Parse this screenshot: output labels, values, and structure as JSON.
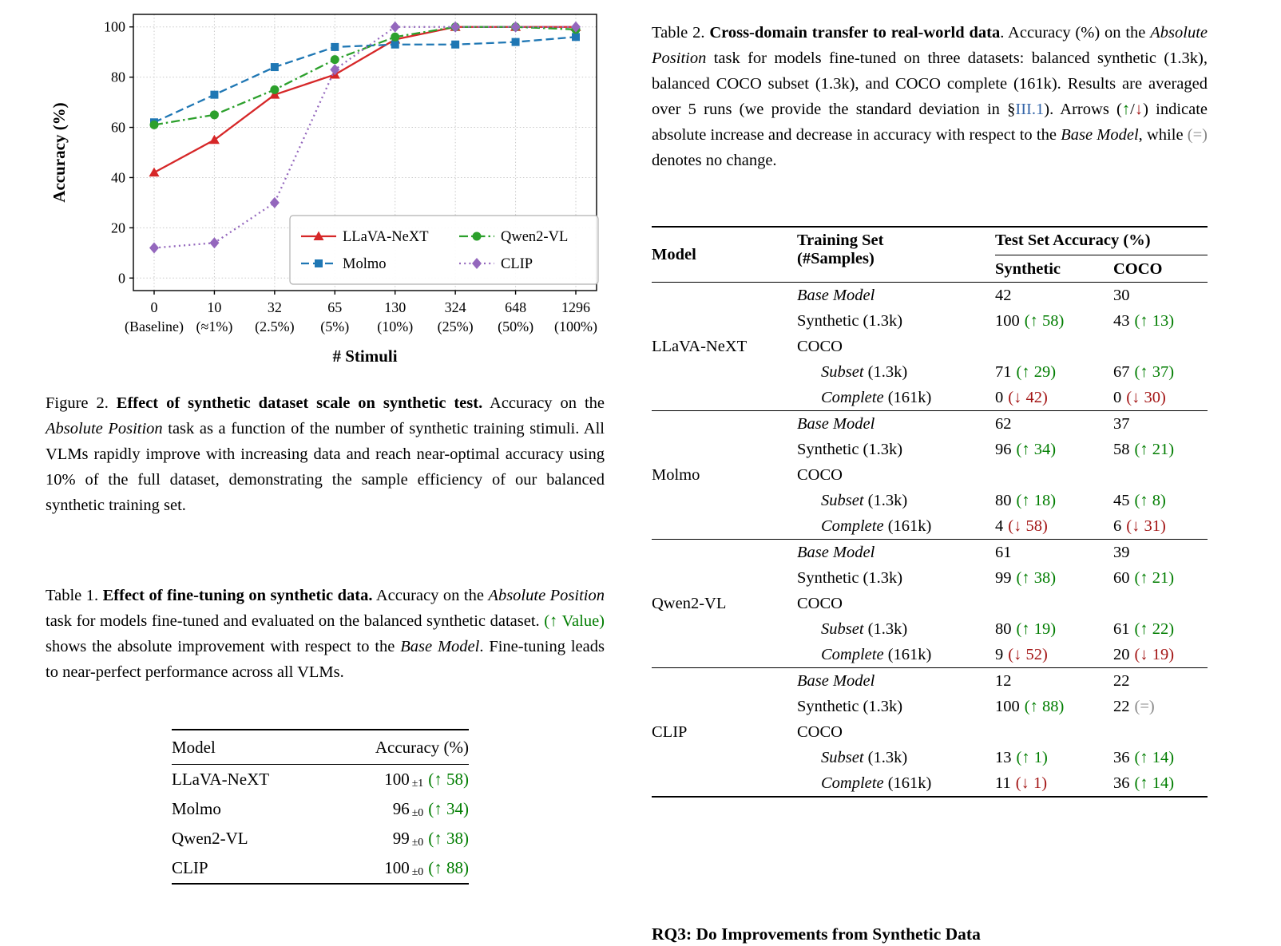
{
  "colors": {
    "increase": "#007d00",
    "decrease": "#a31515",
    "no_change": "#888888",
    "link": "#3465a8"
  },
  "chart_data": {
    "type": "line",
    "title": "",
    "xlabel": "# Stimuli",
    "ylabel": "Accuracy (%)",
    "ylim": [
      0,
      100
    ],
    "yticks": [
      0,
      20,
      40,
      60,
      80,
      100
    ],
    "grid": true,
    "legend_position": "lower center inside",
    "categories": [
      0,
      10,
      32,
      65,
      130,
      324,
      648,
      1296
    ],
    "x_tick_labels": [
      "0",
      "10",
      "32",
      "65",
      "130",
      "324",
      "648",
      "1296"
    ],
    "x_tick_sublabels": [
      "(Baseline)",
      "(≈1%)",
      "(2.5%)",
      "(5%)",
      "(10%)",
      "(25%)",
      "(50%)",
      "(100%)"
    ],
    "series": [
      {
        "name": "LLaVA-NeXT",
        "color": "#d62728",
        "marker": "triangle",
        "line": "solid",
        "values": [
          42,
          55,
          73,
          81,
          95,
          100,
          100,
          100
        ]
      },
      {
        "name": "Molmo",
        "color": "#1f77b4",
        "marker": "square",
        "line": "dashed",
        "values": [
          62,
          73,
          84,
          92,
          93,
          93,
          94,
          96
        ]
      },
      {
        "name": "Qwen2-VL",
        "color": "#2ca02c",
        "marker": "circle",
        "line": "dashdot",
        "values": [
          61,
          65,
          75,
          87,
          96,
          100,
          100,
          99
        ]
      },
      {
        "name": "CLIP",
        "color": "#9467bd",
        "marker": "diamond",
        "line": "dotted",
        "values": [
          12,
          14,
          30,
          83,
          100,
          100,
          100,
          100
        ]
      }
    ]
  },
  "figure2_caption": {
    "p1": "Figure 2. ",
    "b": "Effect of synthetic dataset scale on synthetic test.",
    "p2": " Accuracy on the ",
    "i1": "Absolute Position",
    "p3": " task as a function of the number of synthetic training stimuli. All VLMs rapidly improve with increasing data and reach near-optimal accuracy using 10% of the full dataset, demonstrating the sample efficiency of our balanced synthetic training set."
  },
  "table1_caption": {
    "p1": "Table 1. ",
    "b": "Effect of fine-tuning on synthetic data.",
    "p2": " Accuracy on the ",
    "i1": "Absolute Position",
    "p3": " task for models fine-tuned and evaluated on the balanced synthetic dataset. ",
    "g": "(↑ Value)",
    "p4": " shows the absolute improvement with respect to the ",
    "i2": "Base Model",
    "p5": ". Fine-tuning leads to near-perfect performance across all VLMs."
  },
  "table1": {
    "col_model": "Model",
    "col_accuracy": "Accuracy (%)",
    "rows": [
      {
        "model": "LLaVA-NeXT",
        "value": "100",
        "pm": "±1",
        "delta": "(↑ 58)",
        "dir": "up"
      },
      {
        "model": "Molmo",
        "value": "96",
        "pm": "±0",
        "delta": "(↑ 34)",
        "dir": "up"
      },
      {
        "model": "Qwen2-VL",
        "value": "99",
        "pm": "±0",
        "delta": "(↑ 38)",
        "dir": "up"
      },
      {
        "model": "CLIP",
        "value": "100",
        "pm": "±0",
        "delta": "(↑ 88)",
        "dir": "up"
      }
    ]
  },
  "table2_caption": {
    "p1": "Table 2. ",
    "b": "Cross-domain transfer to real-world data",
    "p2": ". Accuracy (%) on the ",
    "i1": "Absolute Position",
    "p3": " task for models fine-tuned on three datasets: balanced synthetic (1.3k), balanced COCO subset (1.3k), and COCO complete (161k). Results are averaged over 5 runs (we provide the standard deviation in §",
    "link": "III.1",
    "p4": ").  Arrows (",
    "up": "↑",
    "slash": "/",
    "down": "↓",
    "p5": ") indicate absolute increase and decrease in accuracy with respect to the ",
    "i2": "Base Model",
    "p6": ", while ",
    "eq": "(=)",
    "p7": " denotes no change."
  },
  "table2": {
    "headers": {
      "model": "Model",
      "training_line1": "Training Set",
      "training_line2": "(#Samples)",
      "accuracy": "Test Set Accuracy (%)",
      "synthetic": "Synthetic",
      "coco": "COCO"
    },
    "groups": [
      {
        "model": "LLaVA-NeXT",
        "rows": [
          {
            "label_italic": "Base Model",
            "label_plain": "",
            "syn_val": "42",
            "syn_delta": "",
            "syn_dir": "",
            "coco_val": "30",
            "coco_delta": "",
            "coco_dir": ""
          },
          {
            "label_italic": "",
            "label_plain": "Synthetic (1.3k)",
            "syn_val": "100",
            "syn_delta": "(↑ 58)",
            "syn_dir": "up",
            "coco_val": "43",
            "coco_delta": "(↑ 13)",
            "coco_dir": "up"
          },
          {
            "label_italic": "",
            "label_plain": "COCO",
            "syn_val": "",
            "syn_delta": "",
            "syn_dir": "",
            "coco_val": "",
            "coco_delta": "",
            "coco_dir": ""
          },
          {
            "label_italic": "Subset",
            "label_plain": " (1.3k)",
            "syn_val": "71",
            "syn_delta": "(↑ 29)",
            "syn_dir": "up",
            "coco_val": "67",
            "coco_delta": "(↑ 37)",
            "coco_dir": "up"
          },
          {
            "label_italic": "Complete",
            "label_plain": " (161k)",
            "syn_val": "0",
            "syn_delta": "(↓ 42)",
            "syn_dir": "down",
            "coco_val": "0",
            "coco_delta": "(↓ 30)",
            "coco_dir": "down"
          }
        ]
      },
      {
        "model": "Molmo",
        "rows": [
          {
            "label_italic": "Base Model",
            "label_plain": "",
            "syn_val": "62",
            "syn_delta": "",
            "syn_dir": "",
            "coco_val": "37",
            "coco_delta": "",
            "coco_dir": ""
          },
          {
            "label_italic": "",
            "label_plain": "Synthetic (1.3k)",
            "syn_val": "96",
            "syn_delta": "(↑ 34)",
            "syn_dir": "up",
            "coco_val": "58",
            "coco_delta": "(↑ 21)",
            "coco_dir": "up"
          },
          {
            "label_italic": "",
            "label_plain": "COCO",
            "syn_val": "",
            "syn_delta": "",
            "syn_dir": "",
            "coco_val": "",
            "coco_delta": "",
            "coco_dir": ""
          },
          {
            "label_italic": "Subset",
            "label_plain": " (1.3k)",
            "syn_val": "80",
            "syn_delta": "(↑ 18)",
            "syn_dir": "up",
            "coco_val": "45",
            "coco_delta": "(↑ 8)",
            "coco_dir": "up"
          },
          {
            "label_italic": "Complete",
            "label_plain": " (161k)",
            "syn_val": "4",
            "syn_delta": "(↓ 58)",
            "syn_dir": "down",
            "coco_val": "6",
            "coco_delta": "(↓ 31)",
            "coco_dir": "down"
          }
        ]
      },
      {
        "model": "Qwen2-VL",
        "rows": [
          {
            "label_italic": "Base Model",
            "label_plain": "",
            "syn_val": "61",
            "syn_delta": "",
            "syn_dir": "",
            "coco_val": "39",
            "coco_delta": "",
            "coco_dir": ""
          },
          {
            "label_italic": "",
            "label_plain": "Synthetic (1.3k)",
            "syn_val": "99",
            "syn_delta": "(↑ 38)",
            "syn_dir": "up",
            "coco_val": "60",
            "coco_delta": "(↑ 21)",
            "coco_dir": "up"
          },
          {
            "label_italic": "",
            "label_plain": "COCO",
            "syn_val": "",
            "syn_delta": "",
            "syn_dir": "",
            "coco_val": "",
            "coco_delta": "",
            "coco_dir": ""
          },
          {
            "label_italic": "Subset",
            "label_plain": " (1.3k)",
            "syn_val": "80",
            "syn_delta": "(↑ 19)",
            "syn_dir": "up",
            "coco_val": "61",
            "coco_delta": "(↑ 22)",
            "coco_dir": "up"
          },
          {
            "label_italic": "Complete",
            "label_plain": " (161k)",
            "syn_val": "9",
            "syn_delta": "(↓ 52)",
            "syn_dir": "down",
            "coco_val": "20",
            "coco_delta": "(↓ 19)",
            "coco_dir": "down"
          }
        ]
      },
      {
        "model": "CLIP",
        "rows": [
          {
            "label_italic": "Base Model",
            "label_plain": "",
            "syn_val": "12",
            "syn_delta": "",
            "syn_dir": "",
            "coco_val": "22",
            "coco_delta": "",
            "coco_dir": ""
          },
          {
            "label_italic": "",
            "label_plain": "Synthetic (1.3k)",
            "syn_val": "100",
            "syn_delta": "(↑ 88)",
            "syn_dir": "up",
            "coco_val": "22",
            "coco_delta": "(=)",
            "coco_dir": "eq"
          },
          {
            "label_italic": "",
            "label_plain": "COCO",
            "syn_val": "",
            "syn_delta": "",
            "syn_dir": "",
            "coco_val": "",
            "coco_delta": "",
            "coco_dir": ""
          },
          {
            "label_italic": "Subset",
            "label_plain": " (1.3k)",
            "syn_val": "13",
            "syn_delta": "(↑ 1)",
            "syn_dir": "up",
            "coco_val": "36",
            "coco_delta": "(↑ 14)",
            "coco_dir": "up"
          },
          {
            "label_italic": "Complete",
            "label_plain": " (161k)",
            "syn_val": "11",
            "syn_delta": "(↓ 1)",
            "syn_dir": "down",
            "coco_val": "36",
            "coco_delta": "(↑ 14)",
            "coco_dir": "up"
          }
        ]
      }
    ]
  },
  "footer": {
    "partial_heading": "RQ3: Do Improvements from Synthetic Data"
  }
}
